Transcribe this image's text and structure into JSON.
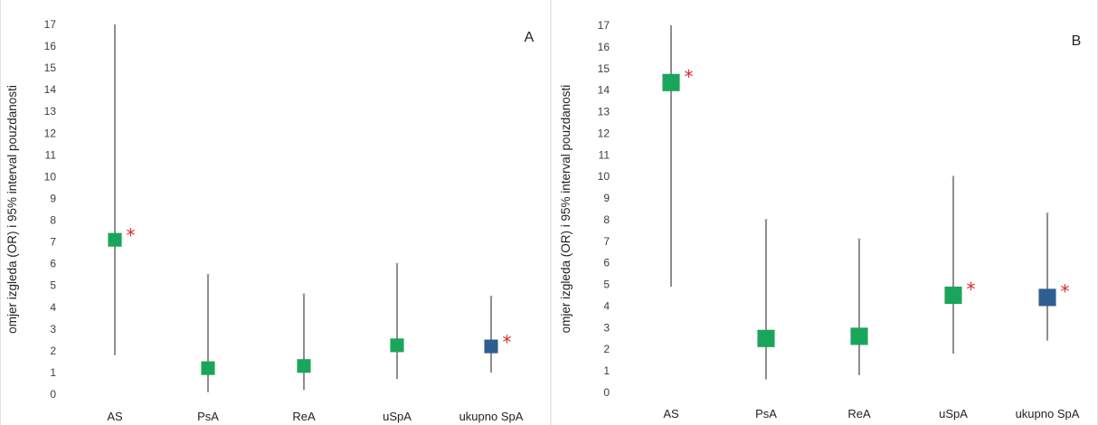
{
  "chart_data": [
    {
      "type": "scatter",
      "panel_label": "A",
      "ylabel": "omjer izgleda (OR) i 95% interval pouzdanosti",
      "ylim": [
        0,
        17
      ],
      "yticks": [
        "0",
        "1",
        "2",
        "3",
        "4",
        "5",
        "6",
        "7",
        "8",
        "9",
        "10",
        "11",
        "12",
        "13",
        "14",
        "15",
        "16",
        "17"
      ],
      "categories": [
        "AS",
        "PsA",
        "ReA",
        "uSpA",
        "ukupno SpA"
      ],
      "series": [
        {
          "values": [
            7.1,
            1.2,
            1.3,
            2.25,
            2.2
          ],
          "lower": [
            1.8,
            0.1,
            0.2,
            0.7,
            1.0
          ],
          "upper": [
            17.0,
            5.5,
            4.6,
            6.0,
            4.5
          ],
          "marker_colors": [
            "#1aa65a",
            "#1aa65a",
            "#1aa65a",
            "#1aa65a",
            "#2e5f91"
          ],
          "significant": [
            true,
            false,
            false,
            false,
            true
          ]
        }
      ],
      "significance_symbol": "*",
      "grid": false,
      "legend": "none"
    },
    {
      "type": "scatter",
      "panel_label": "B",
      "ylabel": "omjer izgleda (OR) i 95% interval pouzdanosti",
      "ylim": [
        0,
        17
      ],
      "yticks": [
        "0",
        "1",
        "2",
        "3",
        "4",
        "5",
        "6",
        "7",
        "8",
        "9",
        "10",
        "11",
        "12",
        "13",
        "14",
        "15",
        "16",
        "17"
      ],
      "categories": [
        "AS",
        "PsA",
        "ReA",
        "uSpA",
        "ukupno SpA"
      ],
      "series": [
        {
          "values": [
            14.35,
            2.5,
            2.6,
            4.5,
            4.4
          ],
          "lower": [
            4.9,
            0.6,
            0.8,
            1.8,
            2.4
          ],
          "upper": [
            17.0,
            8.0,
            7.1,
            10.0,
            8.3
          ],
          "marker_colors": [
            "#1aa65a",
            "#1aa65a",
            "#1aa65a",
            "#1aa65a",
            "#2e5f91"
          ],
          "significant": [
            true,
            false,
            false,
            true,
            true
          ]
        }
      ],
      "significance_symbol": "*",
      "grid": false,
      "legend": "none"
    }
  ]
}
